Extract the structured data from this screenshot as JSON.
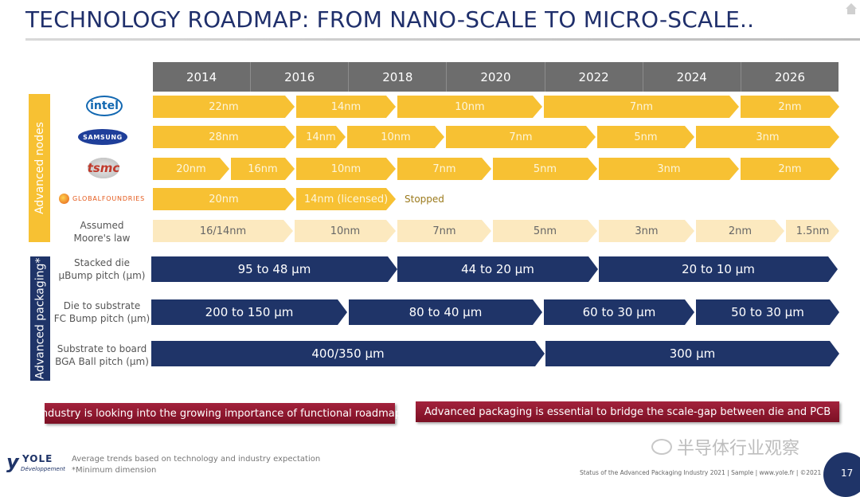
{
  "title": "TECHNOLOGY ROADMAP: FROM NANO-SCALE TO MICRO-SCALE..",
  "years": [
    "2014",
    "2016",
    "2018",
    "2020",
    "2022",
    "2024",
    "2026"
  ],
  "sections": {
    "nodes": "Advanced nodes",
    "packaging": "Advanced packaging*"
  },
  "logos": {
    "intel": "intel",
    "samsung": "SAMSUNG",
    "tsmc": "tsmc",
    "globalfoundries": "GLOBALFOUNDRIES"
  },
  "rows": {
    "intel": [
      "22nm",
      "14nm",
      "10nm",
      "7nm",
      "2nm"
    ],
    "samsung": [
      "28nm",
      "14nm",
      "10nm",
      "7nm",
      "5nm",
      "3nm"
    ],
    "tsmc": [
      "20nm",
      "16nm",
      "10nm",
      "7nm",
      "5nm",
      "3nm",
      "2nm"
    ],
    "gf": [
      "20nm",
      "14nm (licensed)"
    ],
    "gf_status": "Stopped",
    "moore_label": [
      "Assumed",
      "Moore's law"
    ],
    "moore": [
      "16/14nm",
      "10nm",
      "7nm",
      "5nm",
      "3nm",
      "2nm",
      "1.5nm"
    ],
    "stacked_label": [
      "Stacked die",
      "µBump pitch (µm)"
    ],
    "stacked": [
      "95 to 48 µm",
      "44 to 20 µm",
      "20 to 10 µm"
    ],
    "fc_label": [
      "Die to substrate",
      "FC Bump pitch (µm)"
    ],
    "fc": [
      "200 to 150 µm",
      "80 to 40 µm",
      "60 to 30 µm",
      "50 to 30 µm"
    ],
    "bga_label": [
      "Substrate to board",
      "BGA Ball pitch (µm)"
    ],
    "bga": [
      "400/350 µm",
      "300 µm"
    ]
  },
  "banners": [
    "Industry is looking into the growing importance of functional roadmap",
    "Advanced packaging is essential to bridge the scale-gap between die and PCB"
  ],
  "brand": {
    "name": "YOLE",
    "sub": "Développement"
  },
  "notes": [
    "Average trends based on technology and industry expectation",
    "*Minimum dimension"
  ],
  "watermark": "半导体行业观察",
  "footer": "Status of the Advanced Packaging Industry 2021 | Sample | www.yole.fr | ©2021",
  "page_number": "17",
  "colors": {
    "title": "#1f2f6b",
    "node_yellow": "#f7c133",
    "moore_light": "#fce9bf",
    "pack_blue": "#1f3468",
    "banner_red": "#8e1a30",
    "year_grey": "#6d6d6d"
  },
  "icons": [
    "home-icon"
  ]
}
